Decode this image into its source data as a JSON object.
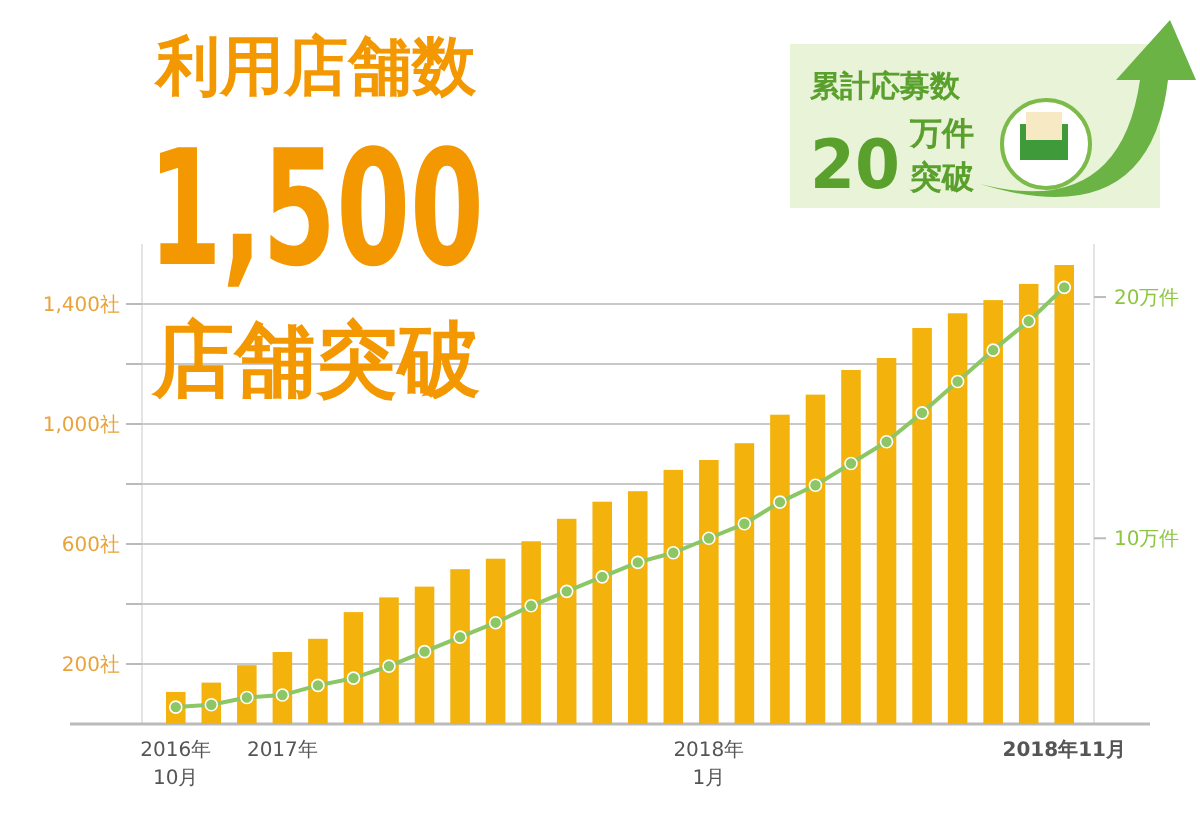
{
  "chart_data": {
    "type": "bar",
    "title": "利用店舗数",
    "annotations": [
      "1,500",
      "店舗突破",
      "累計応募数",
      "20",
      "万件",
      "突破"
    ],
    "categories": [
      "2016年\n10月",
      null,
      null,
      "2017年",
      null,
      null,
      null,
      null,
      null,
      null,
      null,
      null,
      null,
      null,
      null,
      "2018年\n1月",
      null,
      null,
      null,
      null,
      null,
      null,
      null,
      null,
      null,
      "2018年11月"
    ],
    "series": [
      {
        "color": "#f3b20c",
        "values": [
          107,
          138,
          196,
          240,
          284,
          373,
          422,
          458,
          516,
          551,
          609,
          684,
          741,
          776,
          847,
          880,
          936,
          1031,
          1098,
          1180,
          1220,
          1320,
          1369,
          1413,
          1467,
          1530
        ]
      },
      {
        "type": "line",
        "axis": "y2",
        "color": "#8cc665",
        "values": [
          3.0,
          3.1,
          3.4,
          3.5,
          3.9,
          4.2,
          4.7,
          5.3,
          5.9,
          6.5,
          7.2,
          7.8,
          8.4,
          9.0,
          9.4,
          10.0,
          10.6,
          11.5,
          12.2,
          13.1,
          14.0,
          15.2,
          16.5,
          17.8,
          19.0,
          20.4
        ]
      }
    ],
    "ylim": [
      0,
      1600
    ],
    "yticks": [
      {
        "value": 200,
        "label": "200社"
      },
      {
        "value": 400,
        "label": null
      },
      {
        "value": 600,
        "label": "600社"
      },
      {
        "value": 800,
        "label": null
      },
      {
        "value": 1000,
        "label": "1,000社"
      },
      {
        "value": 1200,
        "label": null
      },
      {
        "value": 1400,
        "label": "1,400社"
      }
    ],
    "y2lim": [
      2.3,
      22.2
    ],
    "y2ticks": [
      {
        "value": 10,
        "label": "10万件"
      },
      {
        "value": 20,
        "label": "20万件"
      }
    ],
    "grid": "y",
    "marker": "circle",
    "line_style": "solid"
  }
}
